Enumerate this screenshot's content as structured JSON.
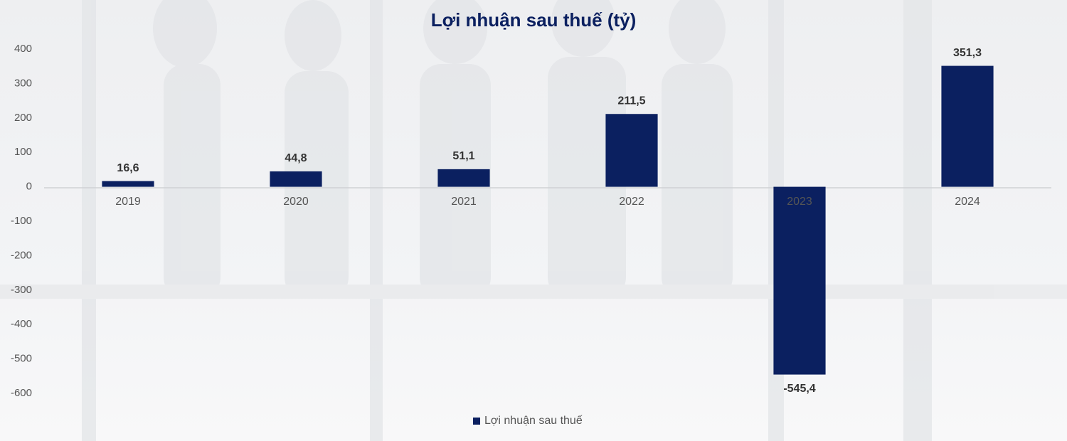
{
  "chart_data": {
    "type": "bar",
    "title": "Lợi nhuận sau thuế (tỷ)",
    "categories": [
      "2019",
      "2020",
      "2021",
      "2022",
      "2023",
      "2024"
    ],
    "values": [
      16.6,
      44.8,
      51.1,
      211.5,
      -545.4,
      351.3
    ],
    "value_labels": [
      "16,6",
      "44,8",
      "51,1",
      "211,5",
      "-545,4",
      "351,3"
    ],
    "color": "#0b2060",
    "ylim": [
      -600,
      400
    ],
    "yticks": [
      400,
      300,
      200,
      100,
      0,
      -100,
      -200,
      -300,
      -400,
      -500,
      -600
    ],
    "grid": false,
    "legend": {
      "position": "bottom",
      "labels": [
        "Lợi nhuận sau thuế"
      ]
    }
  }
}
